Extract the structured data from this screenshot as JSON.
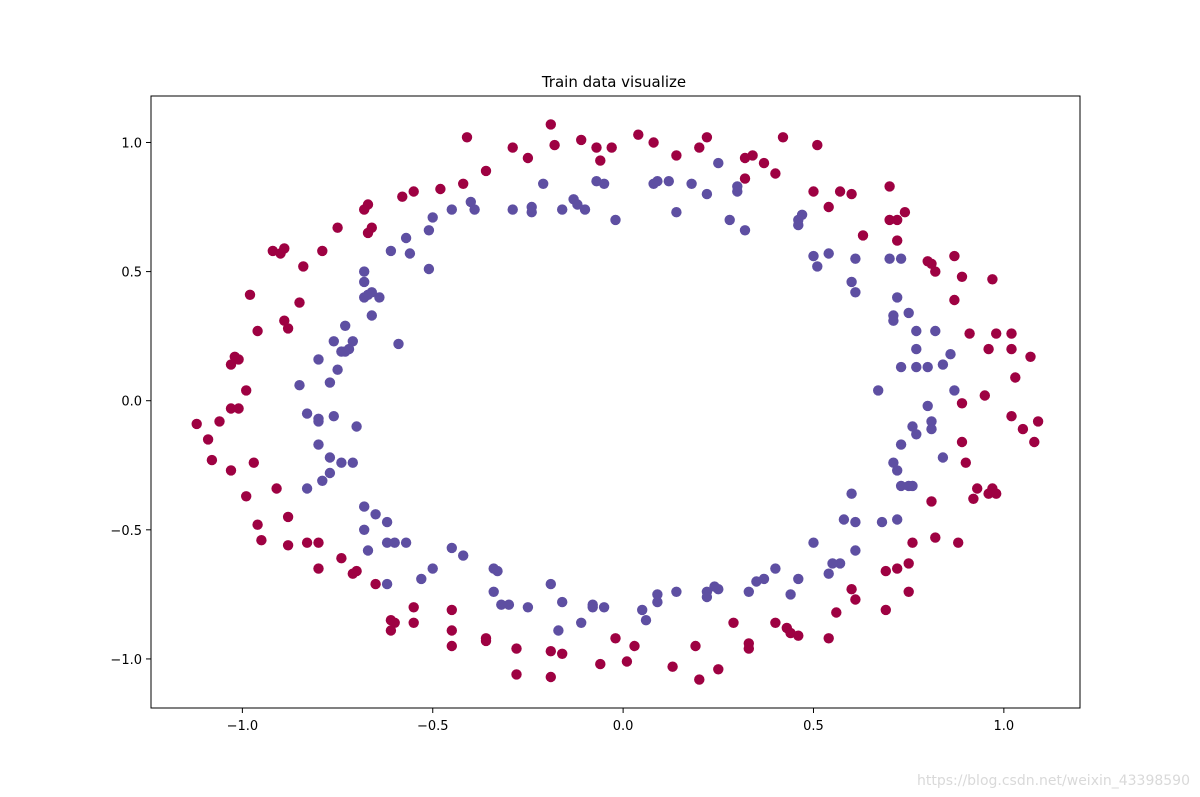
{
  "chart_data": {
    "type": "scatter",
    "title": "Train data visualize",
    "xlabel": "",
    "ylabel": "",
    "xlim": [
      -1.24,
      1.2
    ],
    "ylim": [
      -1.19,
      1.18
    ],
    "xticks": [
      -1.0,
      -0.5,
      0.0,
      0.5,
      1.0
    ],
    "xtick_labels": [
      "−1.0",
      "−0.5",
      "0.0",
      "0.5",
      "1.0"
    ],
    "yticks": [
      1.0,
      0.5,
      0.0,
      -0.5,
      -1.0
    ],
    "ytick_labels": [
      "1.0",
      "0.5",
      "0.0",
      "−0.5",
      "−1.0"
    ],
    "grid": false,
    "legend": false,
    "series": [
      {
        "color": "#9e0142",
        "points": [
          [
            0.51,
            0.99
          ],
          [
            0.42,
            1.02
          ],
          [
            0.04,
            1.03
          ],
          [
            -0.19,
            1.07
          ],
          [
            -0.11,
            1.01
          ],
          [
            -0.07,
            0.98
          ],
          [
            -0.18,
            0.99
          ],
          [
            -0.29,
            0.98
          ],
          [
            -0.25,
            0.94
          ],
          [
            -0.41,
            1.02
          ],
          [
            -0.36,
            0.89
          ],
          [
            -0.42,
            0.84
          ],
          [
            -0.48,
            0.82
          ],
          [
            -0.55,
            0.81
          ],
          [
            -0.58,
            0.79
          ],
          [
            -0.67,
            0.76
          ],
          [
            -0.68,
            0.74
          ],
          [
            -0.75,
            0.67
          ],
          [
            -0.66,
            0.67
          ],
          [
            -0.67,
            0.65
          ],
          [
            -0.79,
            0.58
          ],
          [
            -0.89,
            0.59
          ],
          [
            -0.92,
            0.58
          ],
          [
            -0.9,
            0.57
          ],
          [
            -0.84,
            0.52
          ],
          [
            -0.98,
            0.41
          ],
          [
            -0.85,
            0.38
          ],
          [
            -0.89,
            0.31
          ],
          [
            -0.88,
            0.28
          ],
          [
            -0.96,
            0.27
          ],
          [
            -1.02,
            0.17
          ],
          [
            -1.01,
            0.16
          ],
          [
            -1.03,
            0.14
          ],
          [
            -0.99,
            0.04
          ],
          [
            -1.03,
            -0.03
          ],
          [
            -1.01,
            -0.03
          ],
          [
            -1.06,
            -0.08
          ],
          [
            -1.12,
            -0.09
          ],
          [
            -1.09,
            -0.15
          ],
          [
            -1.08,
            -0.23
          ],
          [
            -0.97,
            -0.24
          ],
          [
            -1.03,
            -0.27
          ],
          [
            -0.91,
            -0.34
          ],
          [
            -0.99,
            -0.37
          ],
          [
            -0.88,
            -0.45
          ],
          [
            -0.96,
            -0.48
          ],
          [
            -0.95,
            -0.54
          ],
          [
            -0.88,
            -0.56
          ],
          [
            -0.83,
            -0.55
          ],
          [
            -0.8,
            -0.55
          ],
          [
            -0.74,
            -0.61
          ],
          [
            -0.8,
            -0.65
          ],
          [
            -0.7,
            -0.66
          ],
          [
            -0.71,
            -0.67
          ],
          [
            -0.65,
            -0.71
          ],
          [
            -0.55,
            -0.8
          ],
          [
            -0.61,
            -0.85
          ],
          [
            -0.6,
            -0.86
          ],
          [
            -0.61,
            -0.89
          ],
          [
            -0.55,
            -0.86
          ],
          [
            -0.45,
            -0.81
          ],
          [
            -0.45,
            -0.89
          ],
          [
            -0.45,
            -0.95
          ],
          [
            -0.36,
            -0.92
          ],
          [
            -0.36,
            -0.93
          ],
          [
            -0.28,
            -0.96
          ],
          [
            -0.28,
            -1.06
          ],
          [
            -0.19,
            -0.97
          ],
          [
            -0.16,
            -0.98
          ],
          [
            -0.19,
            -1.07
          ],
          [
            -0.06,
            -1.02
          ],
          [
            0.01,
            -1.01
          ],
          [
            -0.02,
            -0.92
          ],
          [
            0.03,
            -0.95
          ],
          [
            0.13,
            -1.03
          ],
          [
            0.19,
            -0.95
          ],
          [
            0.2,
            -1.08
          ],
          [
            0.25,
            -1.04
          ],
          [
            0.29,
            -0.86
          ],
          [
            0.33,
            -0.94
          ],
          [
            0.33,
            -0.96
          ],
          [
            0.4,
            -0.86
          ],
          [
            0.43,
            -0.88
          ],
          [
            0.44,
            -0.9
          ],
          [
            0.46,
            -0.91
          ],
          [
            0.54,
            -0.92
          ],
          [
            0.56,
            -0.82
          ],
          [
            0.6,
            -0.73
          ],
          [
            0.61,
            -0.77
          ],
          [
            0.69,
            -0.81
          ],
          [
            0.69,
            -0.66
          ],
          [
            0.72,
            -0.65
          ],
          [
            0.75,
            -0.63
          ],
          [
            0.75,
            -0.74
          ],
          [
            0.76,
            -0.55
          ],
          [
            0.81,
            -0.39
          ],
          [
            0.82,
            -0.53
          ],
          [
            0.88,
            -0.55
          ],
          [
            0.89,
            -0.16
          ],
          [
            0.9,
            -0.24
          ],
          [
            0.92,
            -0.38
          ],
          [
            0.93,
            -0.34
          ],
          [
            0.96,
            -0.36
          ],
          [
            0.97,
            -0.34
          ],
          [
            0.98,
            -0.36
          ],
          [
            0.89,
            -0.01
          ],
          [
            0.95,
            0.02
          ],
          [
            1.02,
            -0.06
          ],
          [
            1.05,
            -0.11
          ],
          [
            1.08,
            -0.16
          ],
          [
            1.09,
            -0.08
          ],
          [
            1.03,
            0.09
          ],
          [
            1.02,
            0.2
          ],
          [
            0.96,
            0.2
          ],
          [
            0.98,
            0.26
          ],
          [
            1.02,
            0.26
          ],
          [
            1.07,
            0.17
          ],
          [
            0.91,
            0.26
          ],
          [
            0.89,
            0.48
          ],
          [
            0.97,
            0.47
          ],
          [
            0.87,
            0.39
          ],
          [
            0.87,
            0.56
          ],
          [
            0.81,
            0.53
          ],
          [
            0.82,
            0.5
          ],
          [
            0.8,
            0.54
          ],
          [
            0.74,
            0.73
          ],
          [
            0.72,
            0.7
          ],
          [
            0.72,
            0.62
          ],
          [
            0.7,
            0.7
          ],
          [
            0.7,
            0.83
          ],
          [
            0.63,
            0.64
          ],
          [
            0.6,
            0.8
          ],
          [
            0.57,
            0.81
          ],
          [
            0.54,
            0.75
          ],
          [
            0.5,
            0.81
          ],
          [
            0.4,
            0.88
          ],
          [
            0.37,
            0.92
          ],
          [
            0.34,
            0.95
          ],
          [
            0.32,
            0.94
          ],
          [
            0.32,
            0.86
          ],
          [
            0.2,
            0.98
          ],
          [
            0.22,
            1.02
          ],
          [
            0.14,
            0.95
          ],
          [
            0.08,
            1.0
          ],
          [
            -0.03,
            0.98
          ],
          [
            -0.06,
            0.93
          ]
        ]
      },
      {
        "color": "#5e4fa2",
        "points": [
          [
            0.25,
            0.92
          ],
          [
            0.22,
            0.8
          ],
          [
            0.18,
            0.84
          ],
          [
            0.12,
            0.85
          ],
          [
            0.09,
            0.85
          ],
          [
            0.08,
            0.84
          ],
          [
            0.14,
            0.73
          ],
          [
            0.3,
            0.81
          ],
          [
            0.3,
            0.83
          ],
          [
            0.28,
            0.7
          ],
          [
            0.32,
            0.66
          ],
          [
            0.46,
            0.7
          ],
          [
            0.47,
            0.72
          ],
          [
            0.46,
            0.68
          ],
          [
            0.5,
            0.56
          ],
          [
            0.51,
            0.52
          ],
          [
            0.54,
            0.57
          ],
          [
            0.61,
            0.55
          ],
          [
            0.6,
            0.46
          ],
          [
            0.61,
            0.42
          ],
          [
            0.7,
            0.55
          ],
          [
            0.73,
            0.55
          ],
          [
            0.72,
            0.4
          ],
          [
            0.71,
            0.33
          ],
          [
            0.71,
            0.31
          ],
          [
            0.75,
            0.34
          ],
          [
            0.77,
            0.27
          ],
          [
            0.82,
            0.27
          ],
          [
            0.77,
            0.2
          ],
          [
            0.77,
            0.13
          ],
          [
            0.73,
            0.13
          ],
          [
            0.8,
            0.13
          ],
          [
            0.86,
            0.18
          ],
          [
            0.84,
            0.14
          ],
          [
            0.87,
            0.04
          ],
          [
            0.67,
            0.04
          ],
          [
            0.8,
            -0.02
          ],
          [
            0.81,
            -0.08
          ],
          [
            0.81,
            -0.11
          ],
          [
            0.76,
            -0.1
          ],
          [
            0.77,
            -0.13
          ],
          [
            0.73,
            -0.17
          ],
          [
            0.71,
            -0.24
          ],
          [
            0.72,
            -0.27
          ],
          [
            0.73,
            -0.33
          ],
          [
            0.75,
            -0.33
          ],
          [
            0.76,
            -0.33
          ],
          [
            0.84,
            -0.22
          ],
          [
            0.72,
            -0.46
          ],
          [
            0.68,
            -0.47
          ],
          [
            0.6,
            -0.36
          ],
          [
            0.58,
            -0.46
          ],
          [
            0.61,
            -0.47
          ],
          [
            0.61,
            -0.58
          ],
          [
            0.57,
            -0.63
          ],
          [
            0.55,
            -0.63
          ],
          [
            0.54,
            -0.67
          ],
          [
            0.5,
            -0.55
          ],
          [
            0.46,
            -0.69
          ],
          [
            0.44,
            -0.75
          ],
          [
            0.4,
            -0.65
          ],
          [
            0.37,
            -0.69
          ],
          [
            0.35,
            -0.7
          ],
          [
            0.33,
            -0.74
          ],
          [
            0.25,
            -0.73
          ],
          [
            0.24,
            -0.72
          ],
          [
            0.22,
            -0.74
          ],
          [
            0.22,
            -0.76
          ],
          [
            0.14,
            -0.74
          ],
          [
            0.09,
            -0.75
          ],
          [
            0.09,
            -0.78
          ],
          [
            0.05,
            -0.81
          ],
          [
            0.06,
            -0.85
          ],
          [
            -0.05,
            -0.8
          ],
          [
            -0.08,
            -0.79
          ],
          [
            -0.08,
            -0.8
          ],
          [
            -0.11,
            -0.86
          ],
          [
            -0.16,
            -0.78
          ],
          [
            -0.19,
            -0.71
          ],
          [
            -0.17,
            -0.89
          ],
          [
            -0.25,
            -0.8
          ],
          [
            -0.3,
            -0.79
          ],
          [
            -0.32,
            -0.79
          ],
          [
            -0.34,
            -0.74
          ],
          [
            -0.34,
            -0.65
          ],
          [
            -0.33,
            -0.66
          ],
          [
            -0.42,
            -0.6
          ],
          [
            -0.45,
            -0.57
          ],
          [
            -0.5,
            -0.65
          ],
          [
            -0.53,
            -0.69
          ],
          [
            -0.57,
            -0.55
          ],
          [
            -0.6,
            -0.55
          ],
          [
            -0.62,
            -0.55
          ],
          [
            -0.62,
            -0.71
          ],
          [
            -0.67,
            -0.58
          ],
          [
            -0.68,
            -0.5
          ],
          [
            -0.65,
            -0.44
          ],
          [
            -0.62,
            -0.47
          ],
          [
            -0.68,
            -0.41
          ],
          [
            -0.71,
            -0.24
          ],
          [
            -0.74,
            -0.24
          ],
          [
            -0.77,
            -0.28
          ],
          [
            -0.77,
            -0.22
          ],
          [
            -0.79,
            -0.31
          ],
          [
            -0.83,
            -0.34
          ],
          [
            -0.8,
            -0.17
          ],
          [
            -0.7,
            -0.1
          ],
          [
            -0.76,
            -0.06
          ],
          [
            -0.8,
            -0.08
          ],
          [
            -0.8,
            -0.07
          ],
          [
            -0.83,
            -0.05
          ],
          [
            -0.85,
            0.06
          ],
          [
            -0.77,
            0.07
          ],
          [
            -0.75,
            0.12
          ],
          [
            -0.8,
            0.16
          ],
          [
            -0.73,
            0.19
          ],
          [
            -0.74,
            0.19
          ],
          [
            -0.72,
            0.2
          ],
          [
            -0.71,
            0.23
          ],
          [
            -0.76,
            0.23
          ],
          [
            -0.73,
            0.29
          ],
          [
            -0.66,
            0.33
          ],
          [
            -0.59,
            0.22
          ],
          [
            -0.68,
            0.4
          ],
          [
            -0.67,
            0.41
          ],
          [
            -0.66,
            0.42
          ],
          [
            -0.64,
            0.4
          ],
          [
            -0.68,
            0.46
          ],
          [
            -0.68,
            0.5
          ],
          [
            -0.61,
            0.58
          ],
          [
            -0.56,
            0.57
          ],
          [
            -0.57,
            0.63
          ],
          [
            -0.51,
            0.51
          ],
          [
            -0.51,
            0.66
          ],
          [
            -0.5,
            0.71
          ],
          [
            -0.45,
            0.74
          ],
          [
            -0.4,
            0.77
          ],
          [
            -0.39,
            0.74
          ],
          [
            -0.29,
            0.74
          ],
          [
            -0.24,
            0.73
          ],
          [
            -0.24,
            0.75
          ],
          [
            -0.21,
            0.84
          ],
          [
            -0.16,
            0.74
          ],
          [
            -0.13,
            0.78
          ],
          [
            -0.12,
            0.76
          ],
          [
            -0.1,
            0.74
          ],
          [
            -0.07,
            0.85
          ],
          [
            -0.05,
            0.84
          ],
          [
            -0.02,
            0.7
          ]
        ]
      }
    ]
  },
  "watermark": "https://blog.csdn.net/weixin_43398590"
}
